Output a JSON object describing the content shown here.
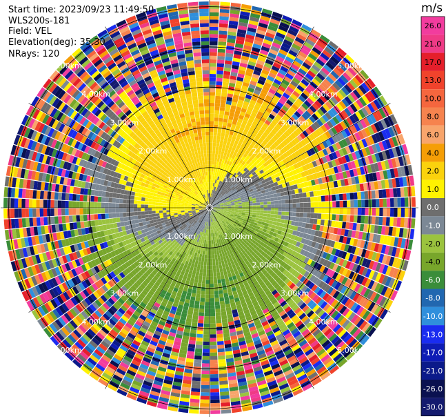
{
  "header": {
    "start_time": "Start time: 2023/09/23 11:49:50",
    "instrument": "WLS200s-181",
    "field": "Field: VEL",
    "elevation": "Elevation(deg): 35.30",
    "nrays": "NRays: 120"
  },
  "colorbar": {
    "unit": "m/s",
    "ticks": [
      "26.0",
      "21.0",
      "17.0",
      "13.0",
      "10.0",
      "8.0",
      "6.0",
      "4.0",
      "2.0",
      "1.0",
      "0.0",
      "-1.0",
      "-2.0",
      "-4.0",
      "-6.0",
      "-8.0",
      "-10.0",
      "-13.0",
      "-17.0",
      "-21.0",
      "-26.0",
      "-30.0"
    ],
    "colors": [
      "#f23c9e",
      "#ef3a86",
      "#e51f2b",
      "#f0432c",
      "#f5663e",
      "#f6834e",
      "#f8a56c",
      "#f59e06",
      "#fbd20d",
      "#fff200",
      "#6e6e6e",
      "#7c8895",
      "#9bc33e",
      "#78a62b",
      "#3a8d3a",
      "#2167b0",
      "#2f8fdc",
      "#1a2cf0",
      "#0e1cb5",
      "#0b1a8a",
      "#0a1150",
      "#141a6e"
    ]
  },
  "chart_data": {
    "type": "heatmap",
    "projection": "polar-ppi",
    "n_rays": 120,
    "range_rings_km": [
      1.0,
      2.0,
      3.0,
      4.0,
      5.0
    ],
    "ring_labels": [
      "1.00km",
      "2.00km",
      "3.00km",
      "4.00km",
      "5.00km"
    ],
    "max_range_km": 5.2,
    "field": "VEL",
    "unit": "m/s",
    "velocity_pattern": {
      "near_range_km": [
        0.0,
        2.8
      ],
      "positive_azimuth_deg": [
        270,
        360
      ],
      "negative_azimuth_deg": [
        90,
        200
      ],
      "far_range_noise_from_km": 3.2
    }
  }
}
